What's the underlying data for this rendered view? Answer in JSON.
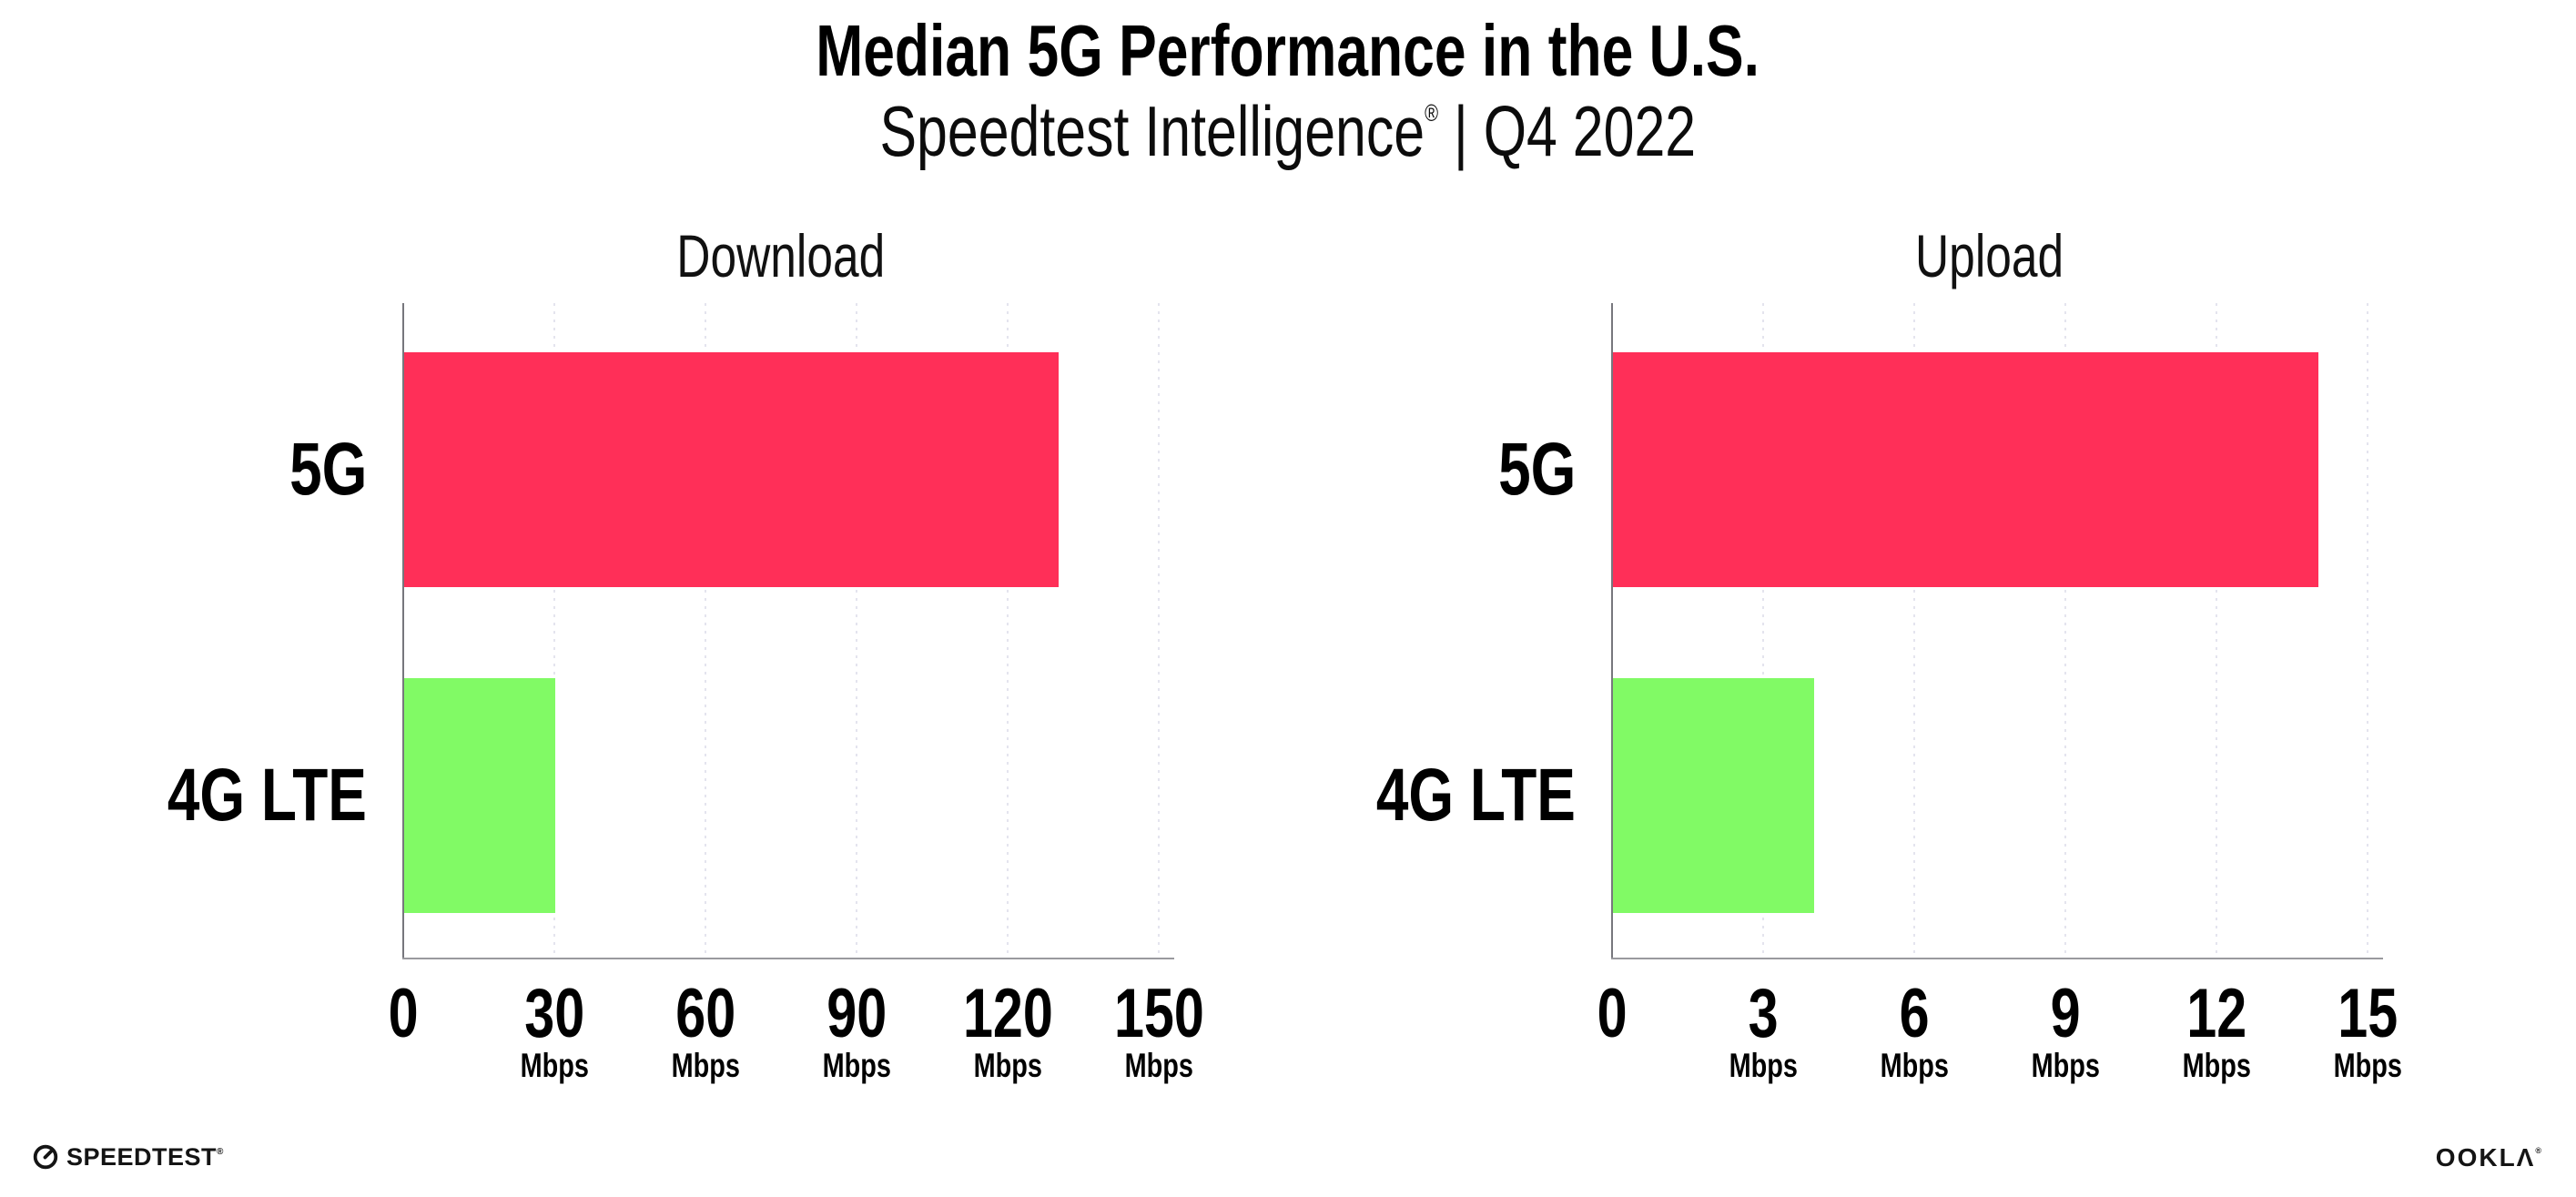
{
  "header": {
    "title": "Median 5G Performance in the U.S.",
    "subtitle_brand": "Speedtest Intelligence",
    "subtitle_reg": "®",
    "subtitle_rest": " | Q4 2022"
  },
  "chart_data": [
    {
      "type": "bar",
      "orientation": "horizontal",
      "title": "Download",
      "categories": [
        "5G",
        "4G LTE"
      ],
      "values": [
        130,
        30
      ],
      "unit": "Mbps",
      "xlim": [
        0,
        150
      ],
      "xticks": [
        0,
        30,
        60,
        90,
        120,
        150
      ],
      "tick_unit": "Mbps",
      "bar_colors": [
        "#ff2f58",
        "#81fa65"
      ],
      "grid": "vertical-dotted",
      "legend": "none"
    },
    {
      "type": "bar",
      "orientation": "horizontal",
      "title": "Upload",
      "categories": [
        "5G",
        "4G LTE"
      ],
      "values": [
        14,
        4
      ],
      "unit": "Mbps",
      "xlim": [
        0,
        15
      ],
      "xticks": [
        0,
        3,
        6,
        9,
        12,
        15
      ],
      "tick_unit": "Mbps",
      "bar_colors": [
        "#ff2f58",
        "#81fa65"
      ],
      "grid": "vertical-dotted",
      "legend": "none"
    }
  ],
  "footer": {
    "speedtest_label": "SPEEDTEST",
    "speedtest_reg": "®",
    "ookla_label": "OOKLΛ",
    "ookla_reg": "®"
  },
  "colors": {
    "bar_5g": "#ff2f58",
    "bar_4g_lte": "#81fa65",
    "grid": "#e4e4ee",
    "x_axis": "#9a9a9e",
    "y_axis": "#77777d",
    "text": "#000000"
  }
}
